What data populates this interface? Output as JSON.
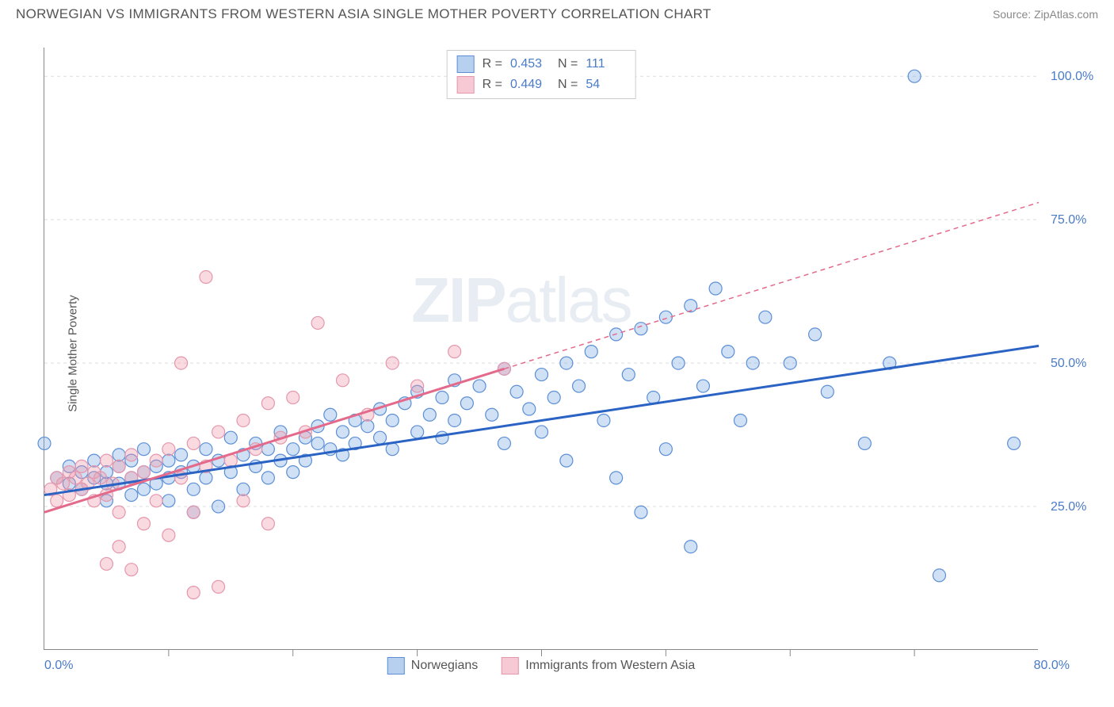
{
  "title": "NORWEGIAN VS IMMIGRANTS FROM WESTERN ASIA SINGLE MOTHER POVERTY CORRELATION CHART",
  "source": "Source: ZipAtlas.com",
  "ylabel_axis": "Single Mother Poverty",
  "watermark": {
    "bold": "ZIP",
    "thin": "atlas"
  },
  "chart": {
    "type": "scatter",
    "xlim": [
      0,
      80
    ],
    "ylim": [
      0,
      105
    ],
    "x_ticks": [
      0,
      80
    ],
    "x_tick_labels": [
      "0.0%",
      "80.0%"
    ],
    "x_minor_ticks": [
      10,
      20,
      30,
      40,
      50,
      60,
      70
    ],
    "y_ticks": [
      25,
      50,
      75,
      100
    ],
    "y_tick_labels": [
      "25.0%",
      "50.0%",
      "75.0%",
      "100.0%"
    ],
    "background_color": "#ffffff",
    "grid_color": "#dddddd",
    "series": [
      {
        "name": "Norwegians",
        "color_fill": "rgba(120,165,225,0.35)",
        "color_stroke": "#5c8fd6",
        "marker_r": 8,
        "legend_swatch_fill": "#b7d0f0",
        "legend_swatch_stroke": "#5c8fd6",
        "R": "0.453",
        "N": "111",
        "trend": {
          "x1": 0,
          "y1": 27,
          "x2": 80,
          "y2": 53,
          "extend_x": 80,
          "extend_y": 53,
          "stroke": "#2a63c4",
          "width": 3,
          "dash": ""
        },
        "points": [
          [
            0,
            36
          ],
          [
            1,
            30
          ],
          [
            2,
            29
          ],
          [
            2,
            32
          ],
          [
            3,
            28
          ],
          [
            3,
            31
          ],
          [
            4,
            30
          ],
          [
            4,
            33
          ],
          [
            5,
            29
          ],
          [
            5,
            26
          ],
          [
            5,
            31
          ],
          [
            6,
            32
          ],
          [
            6,
            29
          ],
          [
            6,
            34
          ],
          [
            7,
            30
          ],
          [
            7,
            27
          ],
          [
            7,
            33
          ],
          [
            8,
            31
          ],
          [
            8,
            28
          ],
          [
            8,
            35
          ],
          [
            9,
            32
          ],
          [
            9,
            29
          ],
          [
            10,
            30
          ],
          [
            10,
            33
          ],
          [
            10,
            26
          ],
          [
            11,
            31
          ],
          [
            11,
            34
          ],
          [
            12,
            28
          ],
          [
            12,
            32
          ],
          [
            12,
            24
          ],
          [
            13,
            30
          ],
          [
            13,
            35
          ],
          [
            14,
            33
          ],
          [
            14,
            25
          ],
          [
            15,
            31
          ],
          [
            15,
            37
          ],
          [
            16,
            34
          ],
          [
            16,
            28
          ],
          [
            17,
            32
          ],
          [
            17,
            36
          ],
          [
            18,
            35
          ],
          [
            18,
            30
          ],
          [
            19,
            33
          ],
          [
            19,
            38
          ],
          [
            20,
            35
          ],
          [
            20,
            31
          ],
          [
            21,
            37
          ],
          [
            21,
            33
          ],
          [
            22,
            36
          ],
          [
            22,
            39
          ],
          [
            23,
            35
          ],
          [
            23,
            41
          ],
          [
            24,
            38
          ],
          [
            24,
            34
          ],
          [
            25,
            40
          ],
          [
            25,
            36
          ],
          [
            26,
            39
          ],
          [
            27,
            37
          ],
          [
            27,
            42
          ],
          [
            28,
            40
          ],
          [
            28,
            35
          ],
          [
            29,
            43
          ],
          [
            30,
            38
          ],
          [
            30,
            45
          ],
          [
            31,
            41
          ],
          [
            32,
            44
          ],
          [
            32,
            37
          ],
          [
            33,
            40
          ],
          [
            33,
            47
          ],
          [
            34,
            43
          ],
          [
            35,
            46
          ],
          [
            36,
            41
          ],
          [
            37,
            49
          ],
          [
            37,
            36
          ],
          [
            38,
            45
          ],
          [
            39,
            42
          ],
          [
            40,
            48
          ],
          [
            40,
            38
          ],
          [
            41,
            44
          ],
          [
            42,
            50
          ],
          [
            42,
            33
          ],
          [
            43,
            46
          ],
          [
            44,
            52
          ],
          [
            45,
            40
          ],
          [
            46,
            55
          ],
          [
            46,
            30
          ],
          [
            47,
            48
          ],
          [
            48,
            56
          ],
          [
            48,
            24
          ],
          [
            49,
            44
          ],
          [
            50,
            58
          ],
          [
            50,
            35
          ],
          [
            51,
            50
          ],
          [
            52,
            60
          ],
          [
            52,
            18
          ],
          [
            53,
            46
          ],
          [
            54,
            63
          ],
          [
            55,
            52
          ],
          [
            56,
            40
          ],
          [
            57,
            50
          ],
          [
            58,
            58
          ],
          [
            60,
            50
          ],
          [
            62,
            55
          ],
          [
            63,
            45
          ],
          [
            66,
            36
          ],
          [
            68,
            50
          ],
          [
            70,
            100
          ],
          [
            72,
            13
          ],
          [
            78,
            36
          ]
        ]
      },
      {
        "name": "Immigrants from Western Asia",
        "color_fill": "rgba(240,150,170,0.35)",
        "color_stroke": "#e597ac",
        "marker_r": 8,
        "legend_swatch_fill": "#f6c9d4",
        "legend_swatch_stroke": "#e597ac",
        "R": "0.449",
        "N": "54",
        "trend": {
          "x1": 0,
          "y1": 24,
          "x2": 37,
          "y2": 49,
          "extend_x": 80,
          "extend_y": 78,
          "stroke": "#e36a8a",
          "width": 3,
          "dash": "6,5"
        },
        "points": [
          [
            0.5,
            28
          ],
          [
            1,
            30
          ],
          [
            1,
            26
          ],
          [
            1.5,
            29
          ],
          [
            2,
            31
          ],
          [
            2,
            27
          ],
          [
            2.5,
            30
          ],
          [
            3,
            28
          ],
          [
            3,
            32
          ],
          [
            3.5,
            29
          ],
          [
            4,
            31
          ],
          [
            4,
            26
          ],
          [
            4.5,
            30
          ],
          [
            5,
            33
          ],
          [
            5,
            27
          ],
          [
            5,
            15
          ],
          [
            5.5,
            29
          ],
          [
            6,
            32
          ],
          [
            6,
            24
          ],
          [
            6,
            18
          ],
          [
            7,
            30
          ],
          [
            7,
            34
          ],
          [
            7,
            14
          ],
          [
            8,
            31
          ],
          [
            8,
            22
          ],
          [
            9,
            33
          ],
          [
            9,
            26
          ],
          [
            10,
            35
          ],
          [
            10,
            20
          ],
          [
            11,
            30
          ],
          [
            11,
            50
          ],
          [
            12,
            36
          ],
          [
            12,
            24
          ],
          [
            12,
            10
          ],
          [
            13,
            32
          ],
          [
            13,
            65
          ],
          [
            14,
            38
          ],
          [
            14,
            11
          ],
          [
            15,
            33
          ],
          [
            16,
            40
          ],
          [
            16,
            26
          ],
          [
            17,
            35
          ],
          [
            18,
            43
          ],
          [
            18,
            22
          ],
          [
            19,
            37
          ],
          [
            20,
            44
          ],
          [
            21,
            38
          ],
          [
            22,
            57
          ],
          [
            24,
            47
          ],
          [
            26,
            41
          ],
          [
            28,
            50
          ],
          [
            30,
            46
          ],
          [
            33,
            52
          ],
          [
            37,
            49
          ]
        ]
      }
    ]
  },
  "legend_bottom": [
    {
      "label": "Norwegians",
      "fill": "#b7d0f0",
      "stroke": "#5c8fd6"
    },
    {
      "label": "Immigrants from Western Asia",
      "fill": "#f6c9d4",
      "stroke": "#e597ac"
    }
  ]
}
